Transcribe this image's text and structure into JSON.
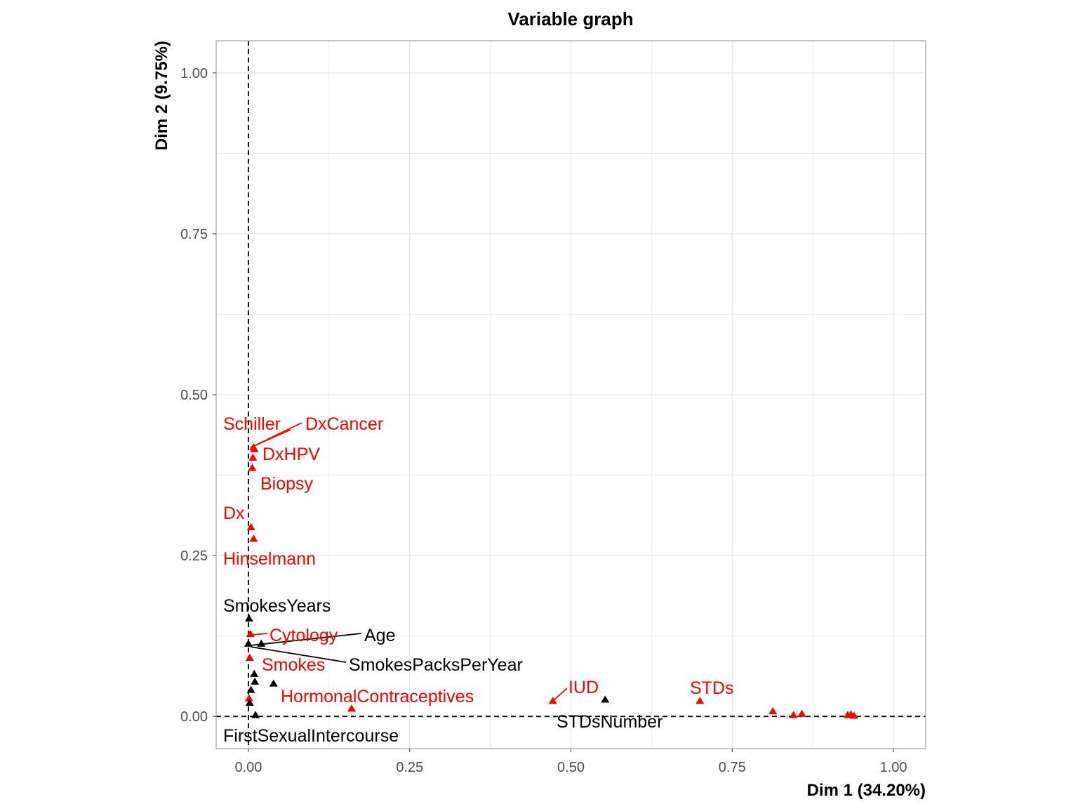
{
  "chart_data": {
    "type": "scatter",
    "title": "Variable graph",
    "xlabel": "Dim 1 (34.20%)",
    "ylabel": "Dim 2 (9.75%)",
    "xlim": [
      -0.05,
      1.05
    ],
    "ylim": [
      -0.05,
      1.05
    ],
    "xticks": [
      0.0,
      0.25,
      0.5,
      0.75,
      1.0
    ],
    "yticks": [
      0.0,
      0.25,
      0.5,
      0.75,
      1.0
    ],
    "xtick_labels": [
      "0.00",
      "0.25",
      "0.50",
      "0.75",
      "1.00"
    ],
    "ytick_labels": [
      "0.00",
      "0.25",
      "0.50",
      "0.75",
      "1.00"
    ],
    "grid": true,
    "reference_lines": {
      "x": 0,
      "y": 0,
      "style": "dashed"
    },
    "colors": {
      "active": "#ff0000",
      "supplementary": "#000000",
      "grid": "#e6e6e6",
      "border": "#b3b3b3"
    },
    "points": [
      {
        "label": "Schiller",
        "x": 0.008,
        "y": 0.418,
        "color": "#ff0000"
      },
      {
        "label": "DxCancer",
        "x": 0.009,
        "y": 0.415,
        "color": "#ff0000"
      },
      {
        "label": "DxHPV",
        "x": 0.007,
        "y": 0.402,
        "color": "#ff0000"
      },
      {
        "label": "Biopsy",
        "x": 0.006,
        "y": 0.386,
        "color": "#ff0000"
      },
      {
        "label": "Dx",
        "x": 0.004,
        "y": 0.294,
        "color": "#ff0000"
      },
      {
        "label": "Hinselmann",
        "x": 0.008,
        "y": 0.276,
        "color": "#ff0000"
      },
      {
        "label": "SmokesYears",
        "x": 0.001,
        "y": 0.152,
        "color": "#000000"
      },
      {
        "label": "Cytology",
        "x": 0.003,
        "y": 0.128,
        "color": "#ff0000"
      },
      {
        "label": "Age",
        "x": 0.02,
        "y": 0.113,
        "color": "#000000"
      },
      {
        "label": "SmokesPacksPerYear",
        "x": 0.0,
        "y": 0.113,
        "color": "#000000"
      },
      {
        "label": "Smokes",
        "x": 0.002,
        "y": 0.091,
        "color": "#ff0000"
      },
      {
        "label": "HormonalContraceptives",
        "x": 0.16,
        "y": 0.012,
        "color": "#ff0000"
      },
      {
        "label": "FirstSexualIntercourse",
        "x": 0.011,
        "y": 0.002,
        "color": "#000000"
      },
      {
        "label": "IUD",
        "x": 0.472,
        "y": 0.024,
        "color": "#ff0000"
      },
      {
        "label": "STDsNumber",
        "x": 0.553,
        "y": 0.026,
        "color": "#000000"
      },
      {
        "label": "STDs",
        "x": 0.7,
        "y": 0.024,
        "color": "#ff0000"
      },
      {
        "label": "",
        "x": 0.009,
        "y": 0.066,
        "color": "#000000"
      },
      {
        "label": "",
        "x": 0.01,
        "y": 0.054,
        "color": "#000000"
      },
      {
        "label": "",
        "x": 0.039,
        "y": 0.051,
        "color": "#000000"
      },
      {
        "label": "",
        "x": 0.004,
        "y": 0.041,
        "color": "#000000"
      },
      {
        "label": "",
        "x": 0.001,
        "y": 0.028,
        "color": "#ff0000"
      },
      {
        "label": "",
        "x": 0.002,
        "y": 0.021,
        "color": "#000000"
      },
      {
        "label": "",
        "x": 0.813,
        "y": 0.008,
        "color": "#ff0000"
      },
      {
        "label": "",
        "x": 0.845,
        "y": 0.002,
        "color": "#ff0000"
      },
      {
        "label": "",
        "x": 0.858,
        "y": 0.004,
        "color": "#ff0000"
      },
      {
        "label": "",
        "x": 0.929,
        "y": 0.002,
        "color": "#ff0000"
      },
      {
        "label": "",
        "x": 0.934,
        "y": 0.003,
        "color": "#ff0000"
      },
      {
        "label": "",
        "x": 0.939,
        "y": 0.001,
        "color": "#ff0000"
      }
    ]
  }
}
